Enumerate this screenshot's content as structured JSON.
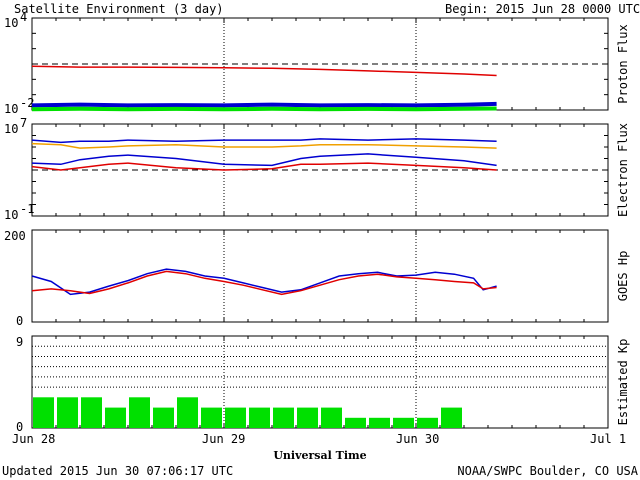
{
  "header": {
    "title": "Satellite Environment (3 day)",
    "begin": "Begin:  2015 Jun 28 0000 UTC"
  },
  "footer": {
    "updated": "Updated 2015 Jun 30 07:06:17 UTC",
    "credit": "NOAA/SWPC Boulder, CO USA",
    "xlabel": "Universal Time"
  },
  "x_ticks": [
    "Jun 28",
    "Jun 29",
    "Jun 30",
    "Jul 1"
  ],
  "colors": {
    "red": "#e00000",
    "blue": "#0000d0",
    "green": "#00e000",
    "orange": "#f0a000"
  },
  "chart_data": [
    {
      "type": "line",
      "ylabel": "Proton Flux",
      "ylim_labels": [
        "10",
        "10"
      ],
      "ylim_exp": [
        "4",
        "-2"
      ],
      "ylim": [
        -2,
        4
      ],
      "yscale": "log",
      "threshold": 1,
      "x": [
        0,
        0.25,
        0.5,
        0.75,
        1.0,
        1.25,
        1.5,
        1.75,
        2.0,
        2.25,
        2.42
      ],
      "series": [
        {
          "color": "red",
          "values": [
            0.85,
            0.8,
            0.8,
            0.78,
            0.75,
            0.72,
            0.65,
            0.55,
            0.45,
            0.35,
            0.25
          ]
        },
        {
          "color": "blue",
          "values": [
            -1.7,
            -1.65,
            -1.7,
            -1.68,
            -1.7,
            -1.65,
            -1.7,
            -1.68,
            -1.7,
            -1.66,
            -1.6
          ]
        },
        {
          "color": "green",
          "values": [
            -1.95,
            -1.92,
            -1.95,
            -1.93,
            -1.95,
            -1.92,
            -1.95,
            -1.93,
            -1.95,
            -1.92,
            -1.9
          ]
        }
      ]
    },
    {
      "type": "line",
      "ylabel": "Electron Flux",
      "ylim_labels": [
        "10",
        "10"
      ],
      "ylim_exp": [
        "7",
        "-1"
      ],
      "ylim": [
        -1,
        7
      ],
      "yscale": "log",
      "threshold": 3,
      "x": [
        0,
        0.15,
        0.25,
        0.4,
        0.5,
        0.75,
        1.0,
        1.25,
        1.4,
        1.5,
        1.75,
        2.0,
        2.25,
        2.42
      ],
      "series": [
        {
          "color": "orange",
          "values": [
            5.3,
            5.2,
            4.9,
            5.0,
            5.1,
            5.2,
            5.0,
            5.0,
            5.1,
            5.2,
            5.2,
            5.1,
            5.0,
            4.9
          ]
        },
        {
          "color": "blue",
          "values": [
            5.6,
            5.4,
            5.5,
            5.5,
            5.6,
            5.5,
            5.6,
            5.6,
            5.6,
            5.7,
            5.6,
            5.7,
            5.6,
            5.5
          ]
        },
        {
          "color": "blue",
          "values": [
            3.6,
            3.5,
            3.9,
            4.2,
            4.3,
            4.0,
            3.5,
            3.4,
            4.0,
            4.2,
            4.4,
            4.1,
            3.8,
            3.4
          ]
        },
        {
          "color": "red",
          "values": [
            3.3,
            3.0,
            3.2,
            3.5,
            3.6,
            3.2,
            3.0,
            3.1,
            3.5,
            3.5,
            3.6,
            3.4,
            3.2,
            3.0
          ]
        }
      ]
    },
    {
      "type": "line",
      "ylabel": "GOES Hp",
      "ylim": [
        0,
        200
      ],
      "ytick_labels": [
        "200",
        "0"
      ],
      "x": [
        0,
        0.1,
        0.2,
        0.3,
        0.4,
        0.5,
        0.6,
        0.7,
        0.8,
        0.9,
        1.0,
        1.1,
        1.2,
        1.3,
        1.4,
        1.5,
        1.6,
        1.7,
        1.8,
        1.9,
        2.0,
        2.1,
        2.2,
        2.3,
        2.35,
        2.42
      ],
      "series": [
        {
          "color": "blue",
          "values": [
            100,
            88,
            60,
            65,
            78,
            90,
            105,
            115,
            110,
            100,
            95,
            85,
            75,
            65,
            70,
            85,
            100,
            105,
            108,
            100,
            102,
            108,
            104,
            95,
            70,
            78
          ]
        },
        {
          "color": "red",
          "values": [
            68,
            72,
            68,
            62,
            72,
            85,
            100,
            110,
            105,
            95,
            88,
            80,
            70,
            60,
            68,
            80,
            92,
            100,
            104,
            98,
            95,
            92,
            88,
            85,
            72,
            75
          ]
        }
      ]
    },
    {
      "type": "bar",
      "ylabel": "Estimated Kp",
      "ylim": [
        0,
        9
      ],
      "ytick_labels": [
        "9",
        "0"
      ],
      "gridlines": [
        4,
        5,
        6,
        7,
        8
      ],
      "values": [
        3,
        3,
        3,
        2,
        3,
        2,
        3,
        2,
        2,
        2,
        2,
        2,
        2,
        1,
        1,
        1,
        1,
        2
      ],
      "color": "green"
    }
  ]
}
